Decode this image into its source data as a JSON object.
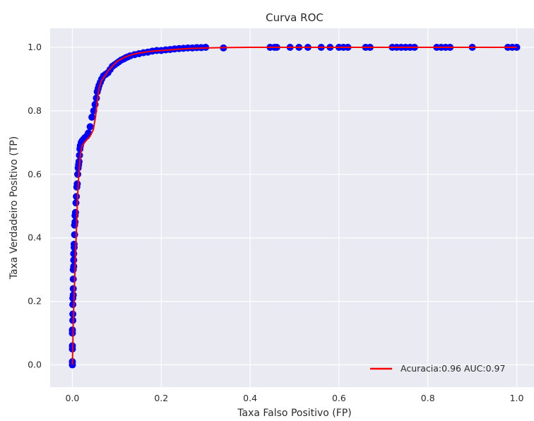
{
  "chart_data": {
    "type": "scatter",
    "title": "Curva ROC",
    "xlabel": "Taxa Falso Positivo (FP)",
    "ylabel": "Taxa Verdadeiro Positivo (TP)",
    "xlim": [
      -0.05,
      1.05
    ],
    "ylim": [
      -0.07,
      1.06
    ],
    "xticks": [
      0.0,
      0.2,
      0.4,
      0.6,
      0.8,
      1.0
    ],
    "yticks": [
      0.0,
      0.2,
      0.4,
      0.6,
      0.8,
      1.0
    ],
    "xtick_labels": [
      "0.0",
      "0.2",
      "0.4",
      "0.6",
      "0.8",
      "1.0"
    ],
    "ytick_labels": [
      "0.0",
      "0.2",
      "0.4",
      "0.6",
      "0.8",
      "1.0"
    ],
    "grid": true,
    "legend_position": "lower-right",
    "colors": {
      "background": "#eaeaf2",
      "grid": "#ffffff",
      "line": "#ff0000",
      "points": "#0000ff"
    },
    "series": [
      {
        "name": "Acuracia:0.96 AUC:0.97",
        "kind": "line",
        "color": "#ff0000",
        "x": [
          0.0,
          0.001,
          0.002,
          0.004,
          0.006,
          0.008,
          0.01,
          0.012,
          0.015,
          0.018,
          0.022,
          0.027,
          0.033,
          0.04,
          0.047,
          0.052,
          0.056,
          0.06,
          0.064,
          0.068,
          0.073,
          0.08,
          0.09,
          0.1,
          0.11,
          0.12,
          0.13,
          0.14,
          0.16,
          0.18,
          0.2,
          0.23,
          0.26,
          0.3,
          0.34,
          0.4,
          0.5,
          0.6,
          0.7,
          0.8,
          0.9,
          1.0
        ],
        "y": [
          0.0,
          0.06,
          0.14,
          0.22,
          0.3,
          0.38,
          0.46,
          0.54,
          0.61,
          0.66,
          0.69,
          0.7,
          0.71,
          0.72,
          0.74,
          0.78,
          0.83,
          0.87,
          0.89,
          0.9,
          0.91,
          0.925,
          0.94,
          0.955,
          0.963,
          0.97,
          0.975,
          0.979,
          0.984,
          0.988,
          0.99,
          0.993,
          0.996,
          0.998,
          0.999,
          1.0,
          1.0,
          1.0,
          1.0,
          1.0,
          1.0,
          1.0
        ]
      },
      {
        "name": "",
        "kind": "points",
        "color": "#0000ff",
        "x": [
          0.0,
          0.0,
          0.0,
          0.0,
          0.0,
          0.0,
          0.001,
          0.001,
          0.001,
          0.001,
          0.002,
          0.002,
          0.002,
          0.002,
          0.003,
          0.003,
          0.003,
          0.004,
          0.004,
          0.005,
          0.005,
          0.006,
          0.006,
          0.007,
          0.008,
          0.009,
          0.01,
          0.011,
          0.012,
          0.013,
          0.014,
          0.015,
          0.016,
          0.017,
          0.018,
          0.02,
          0.022,
          0.025,
          0.028,
          0.032,
          0.036,
          0.04,
          0.044,
          0.048,
          0.051,
          0.054,
          0.056,
          0.058,
          0.06,
          0.063,
          0.066,
          0.07,
          0.075,
          0.08,
          0.085,
          0.09,
          0.095,
          0.1,
          0.105,
          0.11,
          0.115,
          0.12,
          0.125,
          0.13,
          0.14,
          0.15,
          0.16,
          0.17,
          0.18,
          0.19,
          0.2,
          0.21,
          0.22,
          0.23,
          0.24,
          0.25,
          0.26,
          0.27,
          0.28,
          0.29,
          0.3,
          0.34,
          0.445,
          0.455,
          0.46,
          0.49,
          0.51,
          0.53,
          0.56,
          0.58,
          0.6,
          0.61,
          0.62,
          0.66,
          0.67,
          0.72,
          0.73,
          0.74,
          0.75,
          0.76,
          0.77,
          0.82,
          0.83,
          0.84,
          0.85,
          0.9,
          0.98,
          0.99,
          1.0
        ],
        "y": [
          0.0,
          0.01,
          0.05,
          0.06,
          0.1,
          0.11,
          0.14,
          0.16,
          0.19,
          0.21,
          0.22,
          0.24,
          0.27,
          0.3,
          0.31,
          0.33,
          0.35,
          0.37,
          0.38,
          0.41,
          0.44,
          0.45,
          0.47,
          0.48,
          0.51,
          0.53,
          0.56,
          0.57,
          0.6,
          0.62,
          0.63,
          0.64,
          0.66,
          0.68,
          0.69,
          0.7,
          0.705,
          0.71,
          0.715,
          0.72,
          0.73,
          0.75,
          0.78,
          0.8,
          0.82,
          0.84,
          0.86,
          0.87,
          0.88,
          0.89,
          0.9,
          0.91,
          0.915,
          0.92,
          0.93,
          0.94,
          0.945,
          0.95,
          0.955,
          0.96,
          0.963,
          0.967,
          0.97,
          0.973,
          0.977,
          0.98,
          0.983,
          0.985,
          0.988,
          0.99,
          0.99,
          0.992,
          0.993,
          0.995,
          0.996,
          0.997,
          0.998,
          0.998,
          0.999,
          0.999,
          1.0,
          0.998,
          1.0,
          1.0,
          1.0,
          1.0,
          1.0,
          1.0,
          1.0,
          1.0,
          1.0,
          1.0,
          1.0,
          1.0,
          1.0,
          1.0,
          1.0,
          1.0,
          1.0,
          1.0,
          1.0,
          1.0,
          1.0,
          1.0,
          1.0,
          1.0,
          1.0,
          1.0,
          1.0
        ]
      }
    ]
  }
}
